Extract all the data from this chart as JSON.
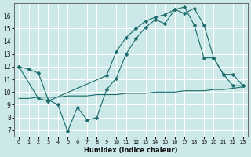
{
  "xlabel": "Humidex (Indice chaleur)",
  "xlim": [
    -0.5,
    23.5
  ],
  "ylim": [
    6.5,
    17.0
  ],
  "yticks": [
    7,
    8,
    9,
    10,
    11,
    12,
    13,
    14,
    15,
    16
  ],
  "xticks": [
    0,
    1,
    2,
    3,
    4,
    5,
    6,
    7,
    8,
    9,
    10,
    11,
    12,
    13,
    14,
    15,
    16,
    17,
    18,
    19,
    20,
    21,
    22,
    23
  ],
  "background_color": "#cce8e8",
  "line_color": "#1a6b6b",
  "grid_color": "#ffffff",
  "line1_x": [
    0,
    1,
    2,
    3,
    4,
    5,
    6,
    7,
    8,
    9,
    10,
    11,
    12,
    13,
    14,
    15,
    16,
    17,
    18,
    19,
    20,
    21,
    22,
    23
  ],
  "line1_y": [
    12.0,
    11.8,
    11.5,
    9.4,
    9.0,
    6.9,
    8.8,
    7.8,
    8.0,
    10.2,
    11.1,
    13.0,
    14.2,
    15.1,
    15.7,
    15.4,
    16.5,
    16.2,
    16.6,
    15.3,
    12.7,
    11.4,
    10.5,
    10.5
  ],
  "line2_x": [
    0,
    2,
    3,
    9,
    10,
    11,
    12,
    13,
    14,
    15,
    16,
    17,
    18,
    19,
    20,
    21,
    22,
    23
  ],
  "line2_y": [
    12.0,
    9.5,
    9.3,
    11.3,
    13.2,
    14.3,
    15.0,
    15.6,
    15.9,
    16.1,
    16.5,
    16.7,
    15.3,
    12.7,
    12.7,
    11.4,
    11.4,
    10.5
  ],
  "line3_x": [
    0,
    1,
    2,
    3,
    4,
    5,
    6,
    7,
    8,
    9,
    10,
    11,
    12,
    13,
    14,
    15,
    16,
    17,
    18,
    19,
    20,
    21,
    22,
    23
  ],
  "line3_y": [
    9.5,
    9.5,
    9.6,
    9.6,
    9.6,
    9.7,
    9.7,
    9.7,
    9.8,
    9.8,
    9.8,
    9.9,
    9.9,
    9.9,
    10.0,
    10.0,
    10.0,
    10.1,
    10.1,
    10.1,
    10.2,
    10.2,
    10.3,
    10.4
  ],
  "marker_size": 2.5,
  "linewidth": 0.8
}
